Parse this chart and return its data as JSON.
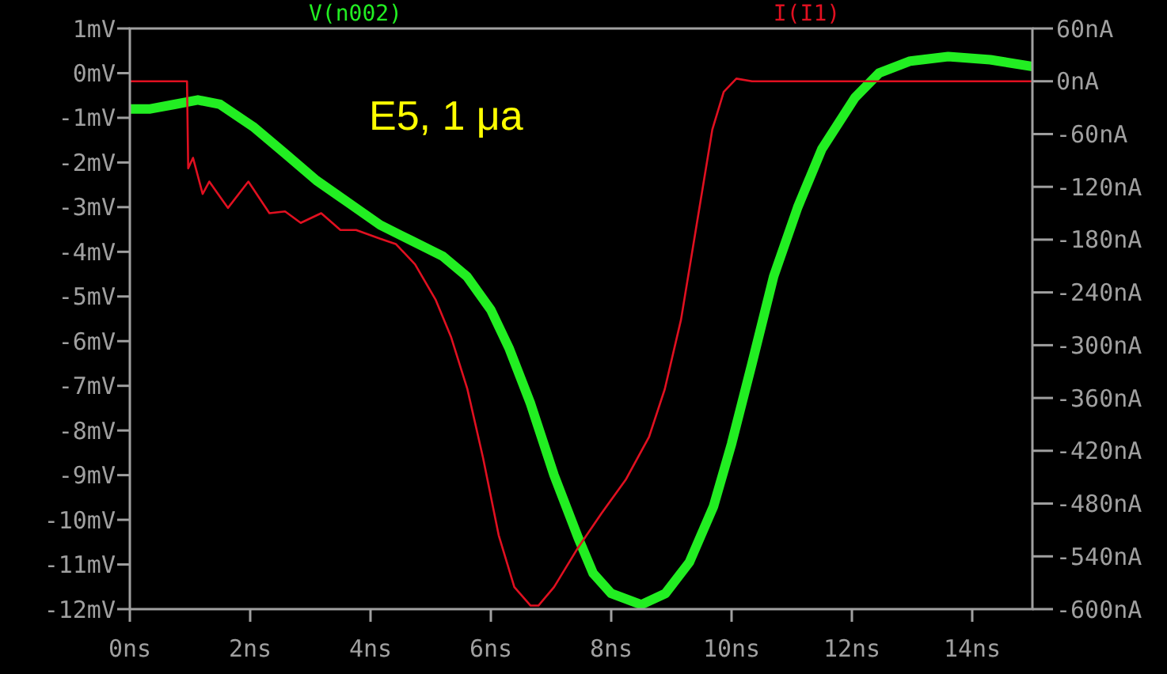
{
  "chart_data": {
    "type": "line",
    "xlim": [
      0,
      15
    ],
    "xticks": [
      {
        "value": 0,
        "label": "0ns"
      },
      {
        "value": 2,
        "label": "2ns"
      },
      {
        "value": 4,
        "label": "4ns"
      },
      {
        "value": 6,
        "label": "6ns"
      },
      {
        "value": 8,
        "label": "8ns"
      },
      {
        "value": 10,
        "label": "10ns"
      },
      {
        "value": 12,
        "label": "12ns"
      },
      {
        "value": 14,
        "label": "14ns"
      }
    ],
    "ylim": [
      -12,
      1
    ],
    "yticks": [
      {
        "value": 1,
        "label": "1mV"
      },
      {
        "value": 0,
        "label": "0mV"
      },
      {
        "value": -1,
        "label": "-1mV"
      },
      {
        "value": -2,
        "label": "-2mV"
      },
      {
        "value": -3,
        "label": "-3mV"
      },
      {
        "value": -4,
        "label": "-4mV"
      },
      {
        "value": -5,
        "label": "-5mV"
      },
      {
        "value": -6,
        "label": "-6mV"
      },
      {
        "value": -7,
        "label": "-7mV"
      },
      {
        "value": -8,
        "label": "-8mV"
      },
      {
        "value": -9,
        "label": "-9mV"
      },
      {
        "value": -10,
        "label": "-10mV"
      },
      {
        "value": -11,
        "label": "-11mV"
      },
      {
        "value": -12,
        "label": "-12mV"
      }
    ],
    "y2lim": [
      -600,
      60
    ],
    "y2ticks": [
      {
        "value": 60,
        "label": "60nA"
      },
      {
        "value": 0,
        "label": "0nA"
      },
      {
        "value": -60,
        "label": "-60nA"
      },
      {
        "value": -120,
        "label": "-120nA"
      },
      {
        "value": -180,
        "label": "-180nA"
      },
      {
        "value": -240,
        "label": "-240nA"
      },
      {
        "value": -300,
        "label": "-300nA"
      },
      {
        "value": -360,
        "label": "-360nA"
      },
      {
        "value": -420,
        "label": "-420nA"
      },
      {
        "value": -480,
        "label": "-480nA"
      },
      {
        "value": -540,
        "label": "-540nA"
      },
      {
        "value": -600,
        "label": "-600nA"
      }
    ],
    "grid": false,
    "marker": "none",
    "line_style": "solid",
    "annotations": [
      "E5, 1 μa"
    ],
    "series": [
      {
        "name": "V(n002)",
        "color": "#22ee22",
        "axis": "y",
        "x": [
          0,
          0.34,
          0.74,
          1.13,
          1.5,
          2.05,
          2.58,
          3.1,
          3.63,
          4.16,
          4.68,
          5.2,
          5.6,
          6.0,
          6.3,
          6.66,
          7.05,
          7.45,
          7.7,
          8.0,
          8.5,
          8.9,
          9.3,
          9.7,
          10.0,
          10.34,
          10.7,
          11.1,
          11.5,
          12.05,
          12.45,
          12.97,
          13.6,
          14.3,
          15
        ],
        "values": [
          -0.8,
          -0.8,
          -0.7,
          -0.6,
          -0.7,
          -1.2,
          -1.8,
          -2.4,
          -2.9,
          -3.4,
          -3.75,
          -4.1,
          -4.55,
          -5.3,
          -6.15,
          -7.4,
          -9.0,
          -10.4,
          -11.2,
          -11.65,
          -11.9,
          -11.65,
          -10.95,
          -9.7,
          -8.3,
          -6.5,
          -4.55,
          -3.0,
          -1.7,
          -0.55,
          0,
          0.27,
          0.37,
          0.3,
          0.15
        ]
      },
      {
        "name": "I(I1)",
        "color": "#e01020",
        "axis": "y2",
        "x": [
          0,
          0.95,
          0.97,
          1.05,
          1.21,
          1.32,
          1.63,
          1.97,
          2.32,
          2.58,
          2.84,
          3.18,
          3.5,
          3.76,
          4.16,
          4.42,
          4.74,
          5.08,
          5.34,
          5.61,
          5.87,
          6.13,
          6.39,
          6.66,
          6.79,
          7.05,
          7.45,
          7.84,
          8.24,
          8.63,
          8.89,
          9.16,
          9.42,
          9.68,
          9.87,
          10.08,
          10.34,
          10.87,
          15
        ],
        "values": [
          0,
          0,
          -99,
          -87,
          -128,
          -114,
          -144,
          -114,
          -150,
          -148,
          -161,
          -150,
          -169,
          -169,
          -179,
          -185,
          -208,
          -248,
          -291,
          -350,
          -428,
          -516,
          -575,
          -596,
          -596,
          -575,
          -530,
          -491,
          -453,
          -404,
          -350,
          -271,
          -163,
          -55,
          -12,
          3,
          0,
          0,
          0
        ]
      }
    ]
  }
}
